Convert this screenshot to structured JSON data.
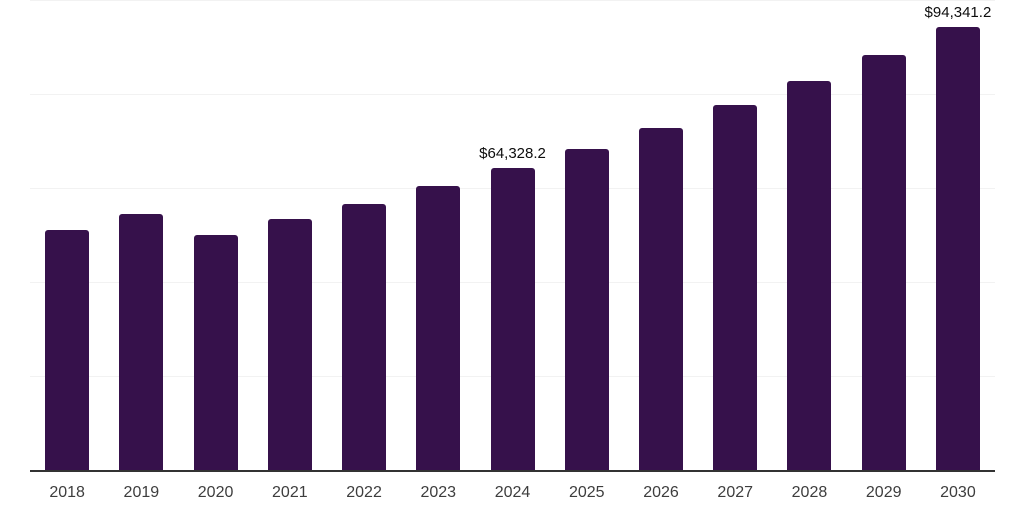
{
  "chart_data": {
    "type": "bar",
    "title": "",
    "xlabel": "",
    "ylabel": "",
    "categories": [
      "2018",
      "2019",
      "2020",
      "2021",
      "2022",
      "2023",
      "2024",
      "2025",
      "2026",
      "2027",
      "2028",
      "2029",
      "2030"
    ],
    "values": [
      51100,
      54400,
      50000,
      53400,
      56700,
      60500,
      64328.2,
      68200,
      72700,
      77600,
      82700,
      88300,
      94341.2
    ],
    "labeled_points": [
      {
        "category": "2024",
        "text": "$64,328.2"
      },
      {
        "category": "2030",
        "text": "$94,341.2"
      }
    ],
    "ylim": [
      0,
      100000
    ],
    "gridline_values": [
      20000,
      40000,
      60000,
      80000,
      100000
    ],
    "grid": "horizontal-faint",
    "legend": "none",
    "bar_color": "#36114B"
  },
  "colors": {
    "background": "#ffffff",
    "bar": "#36114B",
    "axis_line": "#333333",
    "gridline": "#f2f2f2",
    "tick_label": "#3d3d3d",
    "data_label": "#0d0d0d"
  }
}
